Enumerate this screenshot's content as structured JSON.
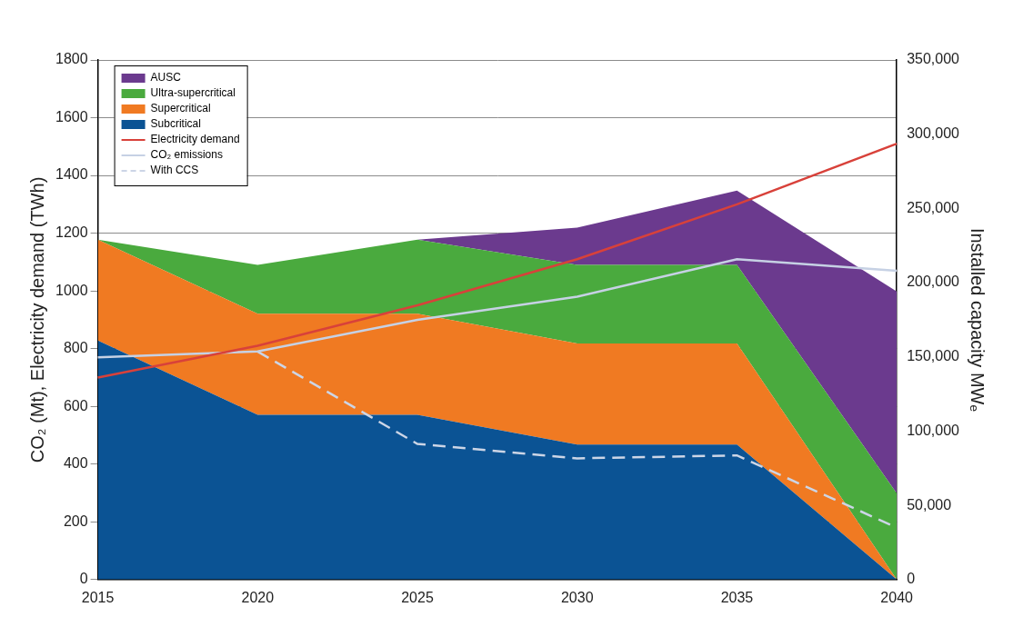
{
  "chart_data": {
    "type": "area",
    "stacked": true,
    "grid": true,
    "legend": "upper left",
    "ylabel": "CO₂ (Mt), Electricity demand (TWh)",
    "y2label": "Installed capacity MWₑ",
    "categories": [
      "2015",
      "2020",
      "2025",
      "2030",
      "2035",
      "2040"
    ],
    "ylim": [
      0,
      1800
    ],
    "yticks": [
      0,
      200,
      400,
      600,
      800,
      1000,
      1200,
      1400,
      1600,
      1800
    ],
    "y2lim": [
      0,
      350000
    ],
    "y2ticks": [
      0,
      {
        "value": 50000,
        "label": "50,000"
      },
      {
        "value": 100000,
        "label": "100,000"
      },
      {
        "value": 150000,
        "label": "150,000"
      },
      {
        "value": 200000,
        "label": "200,000"
      },
      {
        "value": 250000,
        "label": "250,000"
      },
      {
        "value": 300000,
        "label": "300,000"
      },
      {
        "value": 350000,
        "label": "350,000"
      }
    ],
    "series": [
      {
        "name": "AUSC",
        "type": "area",
        "axis": "y2",
        "color": "#6b3a8e",
        "values": [
          0,
          0,
          0,
          25000,
          50000,
          136000
        ]
      },
      {
        "name": "Ultra-supercritical",
        "type": "area",
        "axis": "y2",
        "color": "#4aaa3e",
        "values": [
          0,
          33000,
          50000,
          53000,
          53000,
          58000
        ]
      },
      {
        "name": "Supercritical",
        "type": "area",
        "axis": "y2",
        "color": "#f07a22",
        "values": [
          68000,
          68000,
          68000,
          68000,
          68000,
          0
        ]
      },
      {
        "name": "Subcritical",
        "type": "area",
        "axis": "y2",
        "color": "#0b5394",
        "values": [
          161000,
          111000,
          111000,
          91000,
          91000,
          0
        ]
      },
      {
        "name": "Electricity demand",
        "type": "line",
        "color": "#d8413a",
        "line_style": "solid",
        "values": [
          700,
          810,
          950,
          1110,
          1300,
          1510
        ]
      },
      {
        "name": "CO₂ emissions",
        "type": "line",
        "color": "#c6d1e4",
        "line_style": "solid",
        "values": [
          770,
          790,
          900,
          980,
          1110,
          1070
        ]
      },
      {
        "name": "With CCS",
        "type": "line",
        "color": "#ccd5e6",
        "line_style": "dashed",
        "values": [
          null,
          790,
          470,
          420,
          430,
          180
        ]
      }
    ]
  }
}
